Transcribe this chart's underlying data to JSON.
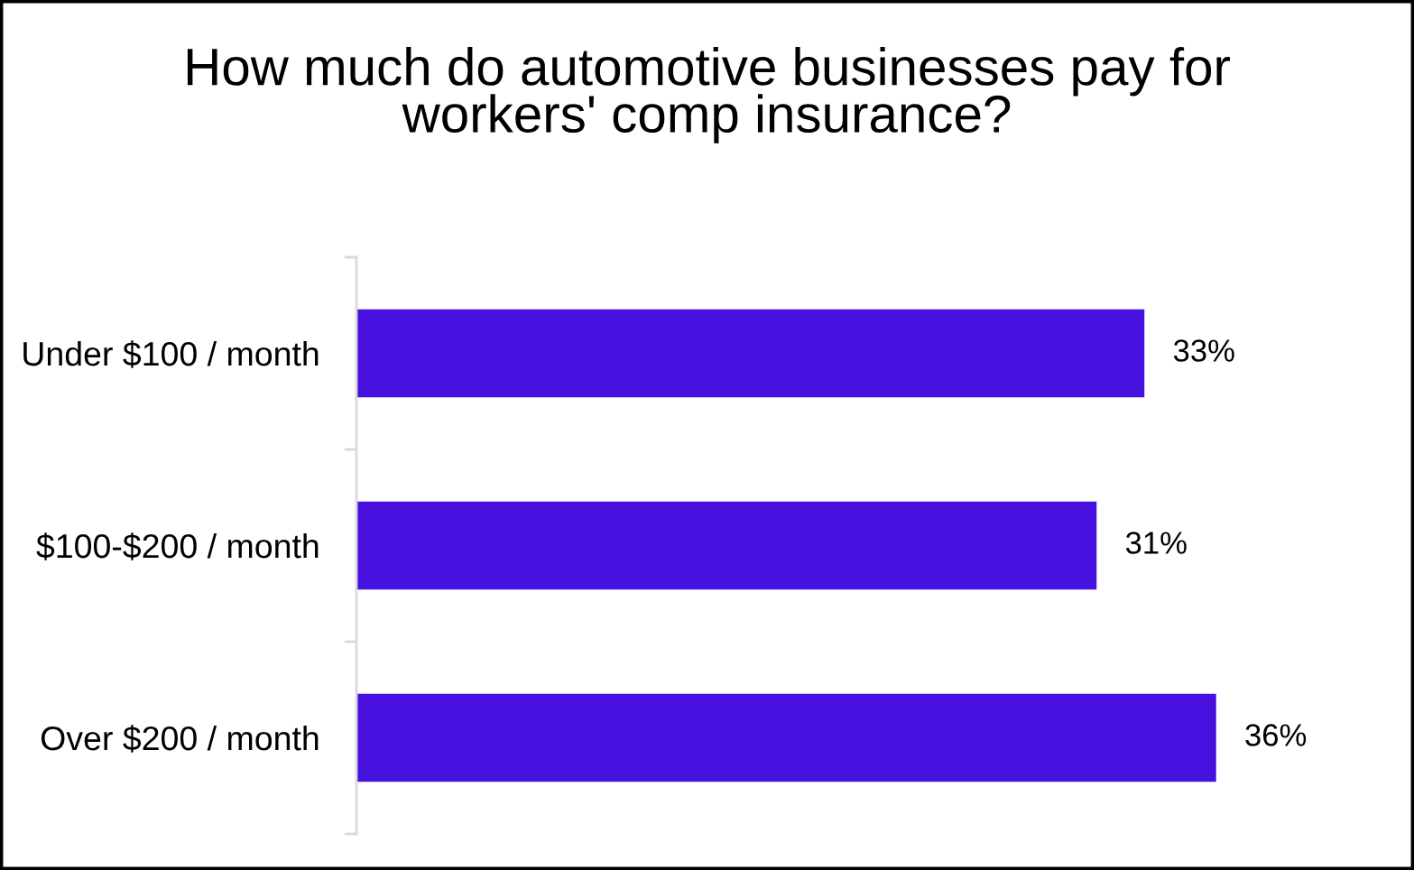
{
  "chart_data": {
    "type": "bar",
    "orientation": "horizontal",
    "title": "How much do automotive businesses pay for\nworkers' comp insurance?",
    "categories": [
      "Under $100 / month",
      "$100-$200 / month",
      "Over $200 / month"
    ],
    "values": [
      33,
      31,
      36
    ],
    "color": "#4610de",
    "value_labels": [
      "33%",
      "31%",
      "36%"
    ]
  }
}
